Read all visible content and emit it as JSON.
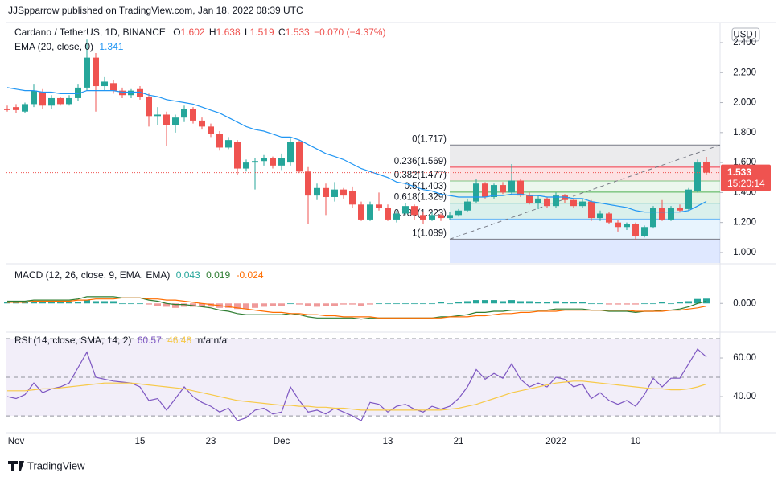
{
  "header": {
    "publisher": "JJSpparrow published on TradingView.com, Jan 18, 2022 08:39 UTC",
    "logo": "TradingView",
    "currency": "USDT",
    "countdown": "15:20:14"
  },
  "chart_data": [
    {
      "type": "candlestick",
      "title": "Cardano / TetherUS, 1D, BINANCE",
      "ohlc_labels": [
        "O",
        "H",
        "L",
        "C"
      ],
      "change": "−0.070 (−4.37%)",
      "up_color": "#26a69a",
      "down_color": "#ef5350",
      "categories": [
        null,
        "Nov",
        null,
        null,
        null,
        null,
        null,
        null,
        null,
        null,
        null,
        null,
        null,
        null,
        null,
        "15",
        null,
        null,
        null,
        null,
        null,
        null,
        null,
        "23",
        null,
        null,
        null,
        null,
        null,
        null,
        null,
        "Dec",
        null,
        null,
        null,
        null,
        null,
        null,
        null,
        null,
        null,
        null,
        null,
        "13",
        null,
        null,
        null,
        null,
        null,
        null,
        null,
        "21",
        null,
        null,
        null,
        null,
        null,
        null,
        null,
        null,
        null,
        null,
        "2022",
        null,
        null,
        null,
        null,
        null,
        null,
        null,
        null,
        "10",
        null,
        null,
        null,
        null,
        null,
        null,
        null,
        null
      ],
      "open": [
        1.96,
        1.97,
        1.94,
        1.99,
        2.07,
        1.98,
        2.03,
        1.99,
        2.03,
        2.1,
        2.3,
        2.11,
        2.13,
        2.08,
        2.05,
        2.09,
        2.04,
        1.91,
        1.92,
        1.85,
        1.9,
        1.96,
        1.88,
        1.84,
        1.79,
        1.7,
        1.74,
        1.56,
        1.6,
        1.61,
        1.63,
        1.58,
        1.6,
        1.74,
        1.54,
        1.38,
        1.43,
        1.37,
        1.42,
        1.41,
        1.32,
        1.22,
        1.32,
        1.3,
        1.22,
        1.26,
        1.31,
        1.25,
        1.22,
        1.25,
        1.23,
        1.25,
        1.28,
        1.34,
        1.46,
        1.37,
        1.45,
        1.4,
        1.48,
        1.38,
        1.33,
        1.36,
        1.31,
        1.38,
        1.35,
        1.31,
        1.34,
        1.23,
        1.26,
        1.2,
        1.17,
        1.19,
        1.11,
        1.17,
        1.3,
        1.22,
        1.3,
        1.29,
        1.41,
        1.602
      ],
      "high": [
        1.98,
        1.99,
        2.0,
        2.12,
        2.09,
        2.05,
        2.04,
        2.05,
        2.12,
        2.42,
        2.33,
        2.17,
        2.15,
        2.1,
        2.09,
        2.11,
        2.06,
        1.97,
        1.94,
        1.92,
        1.98,
        1.97,
        1.9,
        1.86,
        1.81,
        1.77,
        1.75,
        1.62,
        1.63,
        1.65,
        1.64,
        1.66,
        1.76,
        1.75,
        1.57,
        1.46,
        1.46,
        1.47,
        1.43,
        1.44,
        1.34,
        1.34,
        1.4,
        1.32,
        1.28,
        1.33,
        1.32,
        1.27,
        1.27,
        1.26,
        1.27,
        1.29,
        1.36,
        1.49,
        1.47,
        1.46,
        1.47,
        1.59,
        1.49,
        1.4,
        1.38,
        1.37,
        1.4,
        1.39,
        1.36,
        1.36,
        1.35,
        1.28,
        1.27,
        1.22,
        1.2,
        1.2,
        1.18,
        1.31,
        1.35,
        1.31,
        1.32,
        1.43,
        1.62,
        1.638
      ],
      "low": [
        1.94,
        1.93,
        1.93,
        1.97,
        1.96,
        1.96,
        1.98,
        1.98,
        2.01,
        2.08,
        1.94,
        2.08,
        2.06,
        2.03,
        2.03,
        2.02,
        1.84,
        1.85,
        1.71,
        1.8,
        1.87,
        1.86,
        1.82,
        1.77,
        1.68,
        1.69,
        1.52,
        1.54,
        1.42,
        1.58,
        1.56,
        1.55,
        1.58,
        1.53,
        1.19,
        1.35,
        1.25,
        1.34,
        1.36,
        1.3,
        1.21,
        1.21,
        1.28,
        1.21,
        1.2,
        1.25,
        1.22,
        1.19,
        1.21,
        1.21,
        1.22,
        1.24,
        1.27,
        1.33,
        1.36,
        1.36,
        1.39,
        1.39,
        1.37,
        1.32,
        1.29,
        1.3,
        1.3,
        1.33,
        1.3,
        1.3,
        1.21,
        1.21,
        1.19,
        1.14,
        1.15,
        1.08,
        1.1,
        1.16,
        1.21,
        1.21,
        1.27,
        1.28,
        1.4,
        1.519
      ],
      "close": [
        1.95,
        1.95,
        1.99,
        2.08,
        1.98,
        2.03,
        1.99,
        2.03,
        2.1,
        2.3,
        2.11,
        2.14,
        2.08,
        2.05,
        2.08,
        2.04,
        1.91,
        1.92,
        1.85,
        1.9,
        1.96,
        1.88,
        1.84,
        1.79,
        1.7,
        1.75,
        1.56,
        1.6,
        1.61,
        1.63,
        1.58,
        1.63,
        1.74,
        1.54,
        1.38,
        1.43,
        1.37,
        1.42,
        1.38,
        1.32,
        1.22,
        1.32,
        1.3,
        1.22,
        1.26,
        1.31,
        1.25,
        1.22,
        1.25,
        1.23,
        1.25,
        1.28,
        1.34,
        1.46,
        1.37,
        1.45,
        1.4,
        1.48,
        1.38,
        1.33,
        1.36,
        1.31,
        1.38,
        1.35,
        1.31,
        1.34,
        1.23,
        1.26,
        1.2,
        1.17,
        1.19,
        1.11,
        1.17,
        1.3,
        1.22,
        1.3,
        1.28,
        1.42,
        1.6,
        1.533
      ],
      "overlays": [
        {
          "name": "EMA (20, close, 0)",
          "color": "#2196f3",
          "values": [
            2.1,
            2.09,
            2.08,
            2.08,
            2.07,
            2.07,
            2.06,
            2.06,
            2.06,
            2.08,
            2.08,
            2.08,
            2.08,
            2.07,
            2.07,
            2.07,
            2.05,
            2.04,
            2.02,
            2.01,
            2.0,
            1.99,
            1.97,
            1.95,
            1.93,
            1.9,
            1.87,
            1.84,
            1.82,
            1.81,
            1.79,
            1.77,
            1.77,
            1.75,
            1.72,
            1.69,
            1.66,
            1.64,
            1.62,
            1.59,
            1.56,
            1.54,
            1.52,
            1.5,
            1.47,
            1.46,
            1.44,
            1.42,
            1.41,
            1.39,
            1.38,
            1.37,
            1.37,
            1.37,
            1.37,
            1.38,
            1.38,
            1.39,
            1.39,
            1.38,
            1.38,
            1.37,
            1.37,
            1.37,
            1.36,
            1.36,
            1.34,
            1.33,
            1.32,
            1.31,
            1.3,
            1.28,
            1.27,
            1.27,
            1.27,
            1.27,
            1.27,
            1.28,
            1.31,
            1.341
          ]
        }
      ],
      "fib": {
        "levels": [
          {
            "label": "0(1.717)",
            "value": 1.717,
            "color": "#787b86"
          },
          {
            "label": "0.236(1.569)",
            "value": 1.569,
            "color": "#f23645"
          },
          {
            "label": "0.382(1.477)",
            "value": 1.477,
            "color": "#81c784"
          },
          {
            "label": "0.5(1.403)",
            "value": 1.403,
            "color": "#4caf50"
          },
          {
            "label": "0.618(1.329)",
            "value": 1.329,
            "color": "#089981"
          },
          {
            "label": "0.786(1.223)",
            "value": 1.223,
            "color": "#64b5f6"
          },
          {
            "label": "1(1.089)",
            "value": 1.089,
            "color": "#787b86"
          }
        ]
      },
      "ylim": [
        0.93,
        2.534
      ],
      "yticks": [
        {
          "value": 1.0,
          "label": "1.000"
        },
        {
          "value": 1.2,
          "label": "1.200"
        },
        {
          "value": 1.4,
          "label": "1.400"
        },
        {
          "value": 1.6,
          "label": "1.600"
        },
        {
          "value": 1.8,
          "label": "1.800"
        },
        {
          "value": 2.0,
          "label": "2.000"
        },
        {
          "value": 2.2,
          "label": "2.200"
        },
        {
          "value": 2.4,
          "label": "2.400"
        }
      ]
    },
    {
      "type": "macd",
      "title": "MACD (12, 26, close, 9, EMA, EMA)",
      "histogram": {
        "up_color": "#26a69a",
        "down_color": "#ef9a9a",
        "values": [
          0.01,
          0.01,
          0.01,
          0.01,
          0.01,
          0.01,
          0.01,
          0.01,
          0.01,
          0.03,
          0.02,
          0.02,
          0.02,
          0.0,
          0.0,
          0.0,
          -0.01,
          -0.02,
          -0.03,
          -0.04,
          -0.03,
          -0.03,
          -0.03,
          -0.03,
          -0.04,
          -0.04,
          -0.05,
          -0.05,
          -0.04,
          -0.03,
          -0.02,
          -0.02,
          0.0,
          -0.01,
          -0.02,
          -0.03,
          -0.02,
          -0.02,
          -0.01,
          -0.01,
          -0.02,
          -0.01,
          0.0,
          0.0,
          0.0,
          0.0,
          0.0,
          0.0,
          0.0,
          0.01,
          0.0,
          0.01,
          0.02,
          0.03,
          0.03,
          0.03,
          0.02,
          0.03,
          0.02,
          0.02,
          0.01,
          0.01,
          0.02,
          0.01,
          0.01,
          0.01,
          0.0,
          0.0,
          -0.01,
          -0.01,
          -0.01,
          -0.01,
          0.0,
          0.0,
          0.01,
          0.0,
          0.01,
          0.02,
          0.04,
          0.043
        ]
      },
      "series": [
        {
          "name": "MACD",
          "color": "#2e7d32",
          "values": [
            0.02,
            0.02,
            0.02,
            0.03,
            0.03,
            0.03,
            0.03,
            0.03,
            0.04,
            0.06,
            0.06,
            0.06,
            0.06,
            0.05,
            0.05,
            0.05,
            0.03,
            0.02,
            0.0,
            -0.01,
            -0.01,
            -0.02,
            -0.03,
            -0.04,
            -0.06,
            -0.07,
            -0.09,
            -0.1,
            -0.1,
            -0.1,
            -0.1,
            -0.1,
            -0.09,
            -0.1,
            -0.12,
            -0.13,
            -0.13,
            -0.13,
            -0.13,
            -0.13,
            -0.14,
            -0.13,
            -0.13,
            -0.13,
            -0.13,
            -0.13,
            -0.13,
            -0.13,
            -0.13,
            -0.12,
            -0.12,
            -0.11,
            -0.1,
            -0.08,
            -0.08,
            -0.07,
            -0.07,
            -0.06,
            -0.06,
            -0.06,
            -0.06,
            -0.06,
            -0.05,
            -0.05,
            -0.05,
            -0.05,
            -0.06,
            -0.06,
            -0.07,
            -0.07,
            -0.07,
            -0.08,
            -0.07,
            -0.07,
            -0.06,
            -0.06,
            -0.05,
            -0.03,
            0.0,
            0.019
          ]
        },
        {
          "name": "Signal",
          "color": "#ff6d00",
          "values": [
            0.01,
            0.01,
            0.01,
            0.02,
            0.02,
            0.02,
            0.02,
            0.02,
            0.03,
            0.03,
            0.04,
            0.04,
            0.04,
            0.05,
            0.05,
            0.05,
            0.04,
            0.04,
            0.03,
            0.03,
            0.02,
            0.01,
            0.0,
            -0.01,
            -0.02,
            -0.03,
            -0.04,
            -0.05,
            -0.06,
            -0.07,
            -0.08,
            -0.08,
            -0.09,
            -0.09,
            -0.1,
            -0.1,
            -0.11,
            -0.11,
            -0.12,
            -0.12,
            -0.12,
            -0.12,
            -0.13,
            -0.13,
            -0.13,
            -0.13,
            -0.13,
            -0.13,
            -0.13,
            -0.13,
            -0.12,
            -0.12,
            -0.12,
            -0.11,
            -0.11,
            -0.1,
            -0.09,
            -0.09,
            -0.08,
            -0.08,
            -0.07,
            -0.07,
            -0.07,
            -0.06,
            -0.06,
            -0.06,
            -0.06,
            -0.06,
            -0.06,
            -0.06,
            -0.06,
            -0.07,
            -0.07,
            -0.07,
            -0.07,
            -0.06,
            -0.06,
            -0.05,
            -0.04,
            -0.024
          ]
        }
      ],
      "ylim": [
        -0.25,
        0.34
      ],
      "yticks": [
        {
          "value": 0,
          "label": "0.000"
        }
      ]
    },
    {
      "type": "rsi",
      "title": "RSI (14, close, SMA, 14, 2)",
      "na": "n/a n/a",
      "levels": [
        70,
        50,
        30
      ],
      "band_color": "#7e57c2",
      "series": [
        {
          "name": "RSI",
          "color": "#7e57c2",
          "values": [
            40,
            39,
            41,
            47,
            42,
            44,
            45,
            47,
            55,
            63,
            50,
            49,
            48,
            47.5,
            47,
            45,
            38,
            39,
            33,
            39,
            45,
            40,
            37,
            35,
            32,
            34,
            27.5,
            29,
            33,
            34,
            31,
            32,
            45,
            38,
            32,
            33,
            31,
            34,
            32,
            30,
            27.5,
            37,
            36,
            32,
            35,
            36,
            33.5,
            32,
            35,
            33.5,
            35,
            39,
            45,
            54,
            49,
            52,
            49.5,
            57,
            49,
            45,
            47,
            45,
            50,
            49,
            45,
            46.5,
            39,
            42,
            38,
            36,
            38,
            35,
            41,
            49.5,
            45,
            49.5,
            49.5,
            57,
            64.6,
            60.57
          ]
        },
        {
          "name": "SMA",
          "color": "#f7c948",
          "values": [
            43,
            43,
            43,
            43.5,
            44,
            44,
            44.5,
            45,
            45.5,
            46,
            46.5,
            47,
            47,
            47,
            47,
            46.5,
            46,
            45.5,
            45,
            44.5,
            44,
            43,
            42,
            41,
            40,
            39,
            38,
            37.5,
            37,
            36.5,
            36,
            35.5,
            35.5,
            35,
            35,
            34.5,
            34.5,
            34,
            34,
            33.5,
            33,
            33,
            33,
            33,
            33,
            33,
            33,
            33,
            33,
            33,
            33.5,
            34,
            35,
            36,
            37.5,
            39,
            40.5,
            42,
            43,
            44,
            45,
            46,
            47,
            47.5,
            48,
            48,
            47.5,
            47,
            46.5,
            46,
            45.5,
            45,
            44.5,
            44,
            44,
            43.5,
            43.5,
            44,
            45,
            46.48
          ]
        }
      ],
      "ylim": [
        21.7,
        72.5
      ],
      "yticks": [
        {
          "value": 40,
          "label": "40.00"
        },
        {
          "value": 60,
          "label": "60.00"
        }
      ]
    }
  ]
}
